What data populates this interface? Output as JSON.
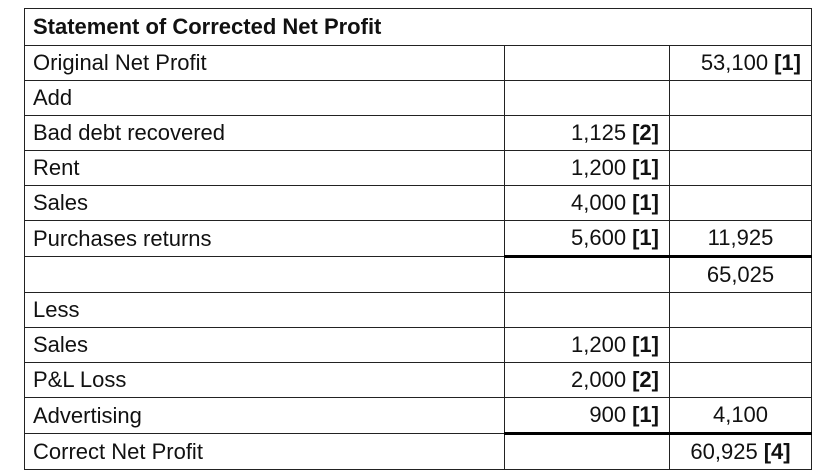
{
  "title": "Statement of Corrected Net Profit",
  "rows": [
    {
      "label": "Original Net Profit",
      "col2": "",
      "col2_mark": "",
      "col3": "53,100",
      "col3_mark": "[1]"
    },
    {
      "label": "Add",
      "col2": "",
      "col2_mark": "",
      "col3": "",
      "col3_mark": ""
    },
    {
      "label": "Bad debt recovered",
      "col2": "1,125",
      "col2_mark": "[2]",
      "col3": "",
      "col3_mark": ""
    },
    {
      "label": "Rent",
      "col2": "1,200",
      "col2_mark": "[1]",
      "col3": "",
      "col3_mark": ""
    },
    {
      "label": "Sales",
      "col2": "4,000",
      "col2_mark": "[1]",
      "col3": "",
      "col3_mark": ""
    },
    {
      "label": "Purchases returns",
      "col2": "5,600",
      "col2_mark": "[1]",
      "col3": "11,925",
      "col3_mark": ""
    },
    {
      "label": "",
      "col2": "",
      "col2_mark": "",
      "col3": "65,025",
      "col3_mark": ""
    },
    {
      "label": "Less",
      "col2": "",
      "col2_mark": "",
      "col3": "",
      "col3_mark": ""
    },
    {
      "label": "Sales",
      "col2": "1,200",
      "col2_mark": "[1]",
      "col3": "",
      "col3_mark": ""
    },
    {
      "label": "P&L Loss",
      "col2": "2,000",
      "col2_mark": "[2]",
      "col3": "",
      "col3_mark": ""
    },
    {
      "label": "Advertising",
      "col2": "900",
      "col2_mark": "[1]",
      "col3": "4,100",
      "col3_mark": ""
    },
    {
      "label": "Correct Net Profit",
      "col2": "",
      "col2_mark": "",
      "col3": "60,925",
      "col3_mark": "[4]"
    }
  ]
}
